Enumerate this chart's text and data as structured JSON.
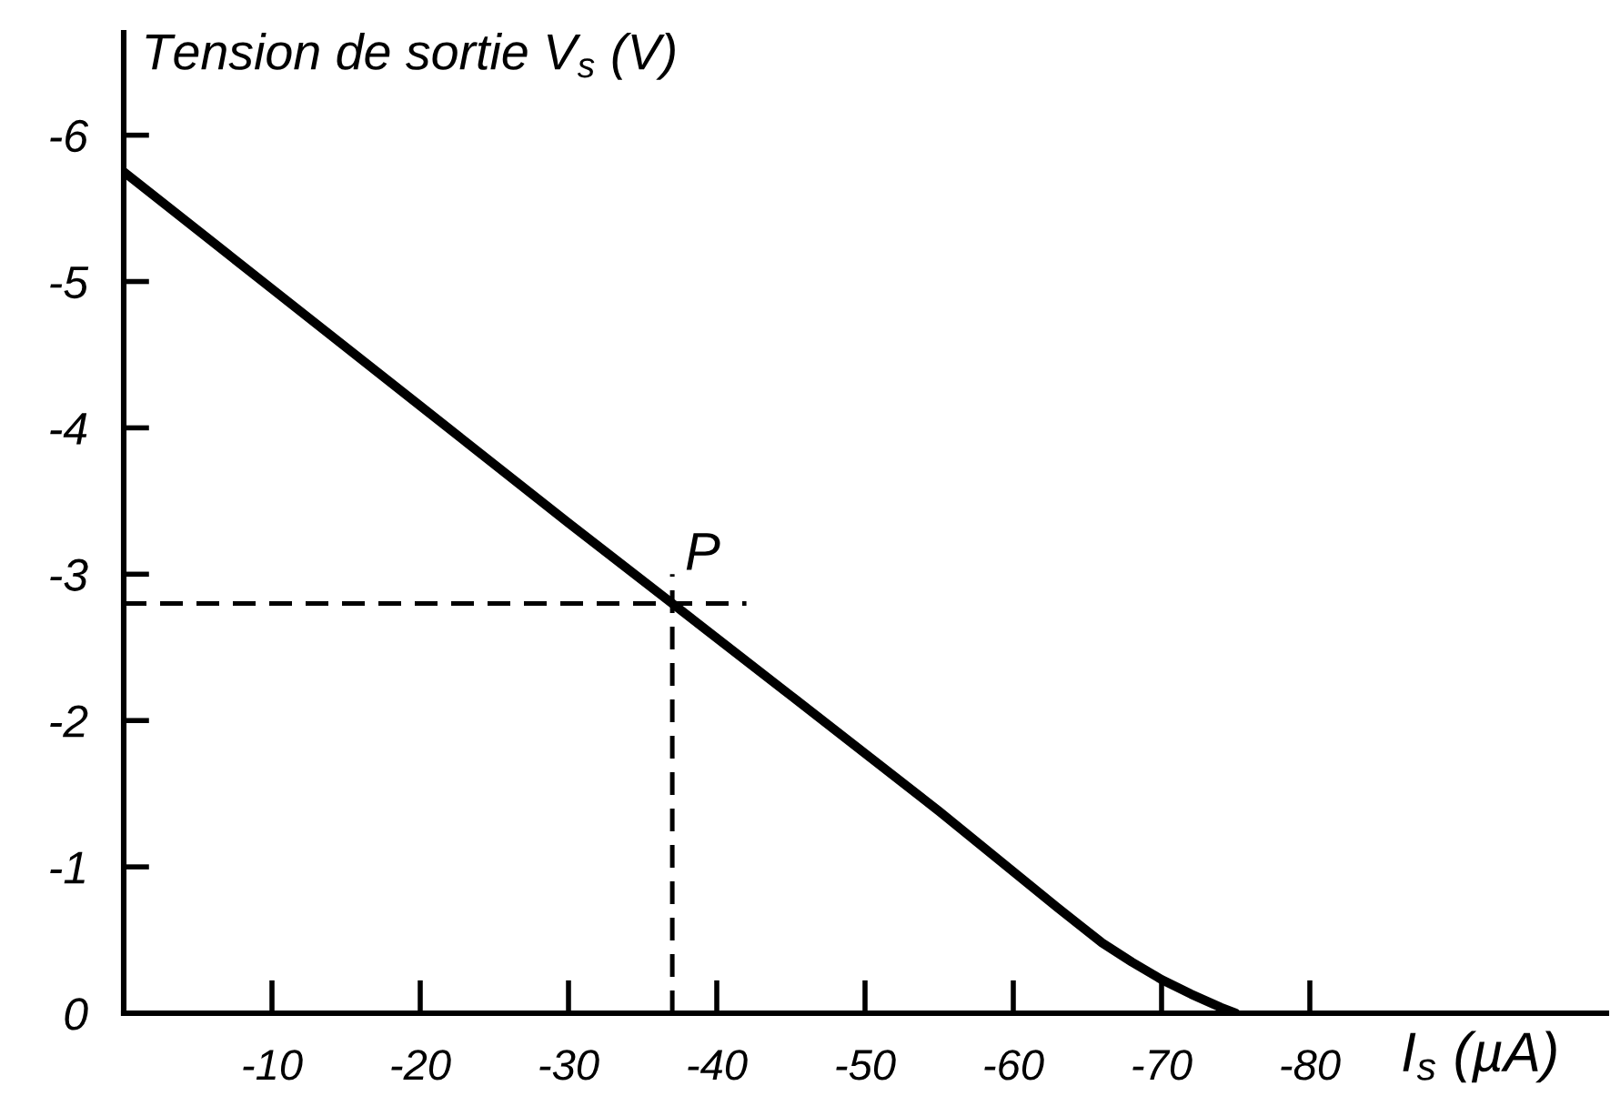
{
  "chart_data": {
    "type": "line",
    "xlabel": "I$_{s}$ (µA)",
    "ylabel": "Tension de sortie V$_{s}$ (V)",
    "xlim": [
      0,
      -100
    ],
    "ylim": [
      0,
      -6.7
    ],
    "xticks": [
      -10,
      -20,
      -30,
      -40,
      -50,
      -60,
      -70,
      -80
    ],
    "yticks": [
      0,
      -1,
      -2,
      -3,
      -4,
      -5,
      -6
    ],
    "series": [
      {
        "color": "#000000",
        "x": [
          0,
          -10,
          -20,
          -30,
          -37,
          -45,
          -55,
          -63,
          -66,
          -68,
          -70,
          -72,
          -74,
          -75
        ],
        "values": [
          -5.75,
          -4.95,
          -4.15,
          -3.35,
          -2.8,
          -2.17,
          -1.38,
          -0.72,
          -0.48,
          -0.35,
          -0.23,
          -0.13,
          -0.04,
          0
        ]
      },
      {
        "color": "#000000",
        "line_style": "dashed",
        "x": [
          0,
          -42
        ],
        "values": [
          -2.8,
          -2.8
        ]
      },
      {
        "color": "#000000",
        "line_style": "dashed",
        "x": [
          -37,
          -37
        ],
        "values": [
          0,
          -3.0
        ]
      }
    ],
    "annotations": [
      {
        "text": "P",
        "x": -37,
        "y": -2.8
      }
    ]
  }
}
